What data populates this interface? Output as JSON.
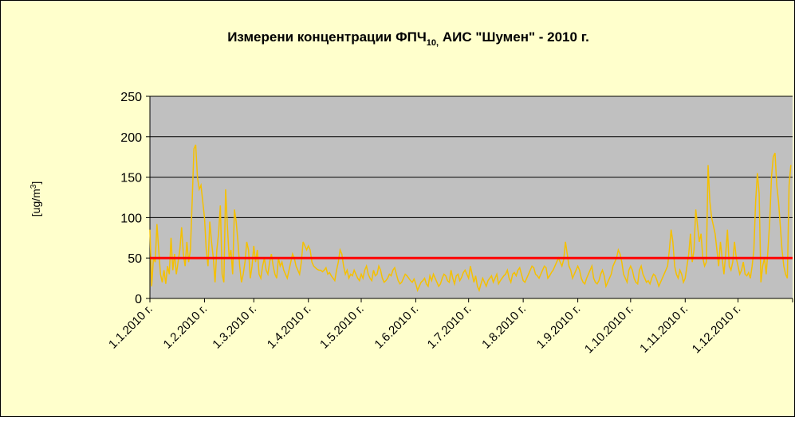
{
  "chart_data": {
    "type": "line",
    "title": {
      "main": "Измерени концентрации ФПЧ",
      "sub": "10,",
      "rest": " АИС \"Шумен\" - 2010 г."
    },
    "ylabel": {
      "text": "[ug/m",
      "sup": "3",
      "end": "]"
    },
    "xlim": [
      0,
      365
    ],
    "xticks": [
      {
        "value": 0,
        "label": "1.1.2010 г."
      },
      {
        "value": 31,
        "label": "1.2.2010 г."
      },
      {
        "value": 59,
        "label": "1.3.2010 г."
      },
      {
        "value": 90,
        "label": "1.4.2010 г."
      },
      {
        "value": 120,
        "label": "1.5.2010 г."
      },
      {
        "value": 151,
        "label": "1.6.2010 г."
      },
      {
        "value": 181,
        "label": "1.7.2010 г."
      },
      {
        "value": 212,
        "label": "1.8.2010 г."
      },
      {
        "value": 243,
        "label": "1.9.2010 г."
      },
      {
        "value": 273,
        "label": "1.10.2010 г."
      },
      {
        "value": 304,
        "label": "1.11.2010 г."
      },
      {
        "value": 334,
        "label": "1.12.2010 г."
      },
      {
        "value": 365,
        "label": ""
      }
    ],
    "ylim": [
      0,
      250
    ],
    "yticks": [
      0,
      50,
      100,
      150,
      200,
      250
    ],
    "grid": true,
    "limit": {
      "value": 50,
      "color": "#ff0000"
    },
    "series": [
      {
        "color": "#f5c000",
        "values": [
          85,
          15,
          50,
          45,
          92,
          60,
          30,
          20,
          35,
          18,
          40,
          30,
          75,
          35,
          55,
          30,
          45,
          60,
          88,
          55,
          40,
          70,
          45,
          60,
          120,
          185,
          190,
          150,
          135,
          140,
          120,
          100,
          60,
          40,
          95,
          70,
          50,
          20,
          60,
          80,
          115,
          30,
          20,
          135,
          90,
          50,
          60,
          30,
          110,
          95,
          70,
          40,
          20,
          30,
          45,
          70,
          60,
          25,
          40,
          65,
          45,
          60,
          30,
          25,
          40,
          50,
          35,
          30,
          45,
          55,
          40,
          30,
          25,
          50,
          40,
          45,
          35,
          30,
          25,
          35,
          45,
          55,
          50,
          40,
          35,
          30,
          45,
          70,
          65,
          60,
          65,
          60,
          45,
          40,
          38,
          36,
          35,
          35,
          33,
          35,
          38,
          30,
          32,
          28,
          25,
          22,
          35,
          45,
          60,
          55,
          40,
          30,
          35,
          25,
          30,
          28,
          35,
          30,
          25,
          22,
          30,
          25,
          35,
          40,
          30,
          25,
          22,
          35,
          28,
          30,
          40,
          35,
          25,
          20,
          22,
          25,
          30,
          28,
          35,
          38,
          30,
          22,
          18,
          20,
          25,
          30,
          28,
          25,
          22,
          20,
          24,
          18,
          10,
          15,
          20,
          22,
          25,
          18,
          15,
          28,
          22,
          30,
          25,
          20,
          15,
          18,
          25,
          30,
          28,
          22,
          20,
          35,
          25,
          18,
          28,
          30,
          22,
          26,
          32,
          35,
          30,
          25,
          40,
          30,
          20,
          28,
          15,
          10,
          18,
          25,
          20,
          15,
          22,
          25,
          28,
          20,
          25,
          30,
          18,
          22,
          25,
          28,
          30,
          35,
          25,
          20,
          30,
          32,
          28,
          35,
          38,
          30,
          22,
          20,
          25,
          30,
          35,
          40,
          38,
          30,
          28,
          25,
          30,
          35,
          40,
          38,
          25,
          28,
          32,
          35,
          40,
          45,
          50,
          45,
          40,
          48,
          70,
          55,
          40,
          35,
          25,
          30,
          35,
          40,
          35,
          25,
          20,
          18,
          25,
          30,
          35,
          40,
          25,
          20,
          18,
          22,
          30,
          35,
          28,
          15,
          20,
          25,
          30,
          40,
          45,
          50,
          60,
          55,
          45,
          30,
          25,
          20,
          35,
          40,
          35,
          25,
          20,
          18,
          35,
          40,
          30,
          25,
          20,
          22,
          18,
          25,
          30,
          28,
          22,
          15,
          20,
          25,
          30,
          35,
          40,
          60,
          85,
          70,
          40,
          30,
          25,
          35,
          30,
          20,
          25,
          40,
          55,
          80,
          45,
          60,
          110,
          90,
          70,
          80,
          50,
          40,
          45,
          165,
          120,
          100,
          90,
          80,
          60,
          40,
          70,
          50,
          30,
          55,
          85,
          40,
          35,
          45,
          70,
          50,
          40,
          30,
          35,
          45,
          30,
          28,
          32,
          25,
          40,
          60,
          120,
          155,
          130,
          20,
          40,
          50,
          30,
          60,
          95,
          150,
          175,
          180,
          140,
          120,
          90,
          60,
          40,
          30,
          25,
          140,
          165
        ]
      }
    ]
  }
}
